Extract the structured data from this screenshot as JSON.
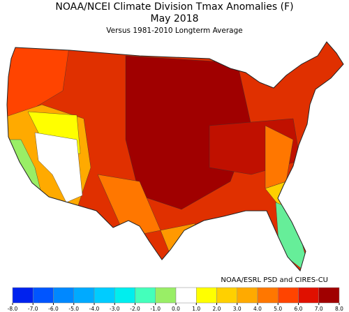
{
  "header": {
    "title": "NOAA/NCEI Climate Division Tmax Anomalies (F)",
    "period": "May 2018",
    "subtitle": "Versus 1981-2010 Longterm Average"
  },
  "credit": "NOAA/ESRL PSD and CIRES-CU",
  "colorbar": {
    "ticks": [
      {
        "value": -8,
        "label": "-8.0"
      },
      {
        "value": -7,
        "label": "-7.0"
      },
      {
        "value": -6,
        "label": "-6.0"
      },
      {
        "value": -5,
        "label": "-5.0"
      },
      {
        "value": -4,
        "label": "-4.0"
      },
      {
        "value": -3,
        "label": "-3.0"
      },
      {
        "value": -2,
        "label": "-2.0"
      },
      {
        "value": -1,
        "label": "-1.0"
      },
      {
        "value": 0,
        "label": "0.0"
      },
      {
        "value": 1,
        "label": "1.0"
      },
      {
        "value": 2,
        "label": "2.0"
      },
      {
        "value": 3,
        "label": "3.0"
      },
      {
        "value": 4,
        "label": "4.0"
      },
      {
        "value": 5,
        "label": "5.0"
      },
      {
        "value": 6,
        "label": "6.0"
      },
      {
        "value": 7,
        "label": "7.0"
      },
      {
        "value": 8,
        "label": "8.0"
      }
    ],
    "colors": [
      "#0022ee",
      "#0055ff",
      "#0088ff",
      "#00aaff",
      "#00ccff",
      "#00eeee",
      "#44ffbb",
      "#99ee66",
      "#ffffff",
      "#ffff00",
      "#ffd000",
      "#ffaa00",
      "#ff7700",
      "#ff4400",
      "#e01000",
      "#a00000"
    ]
  }
}
